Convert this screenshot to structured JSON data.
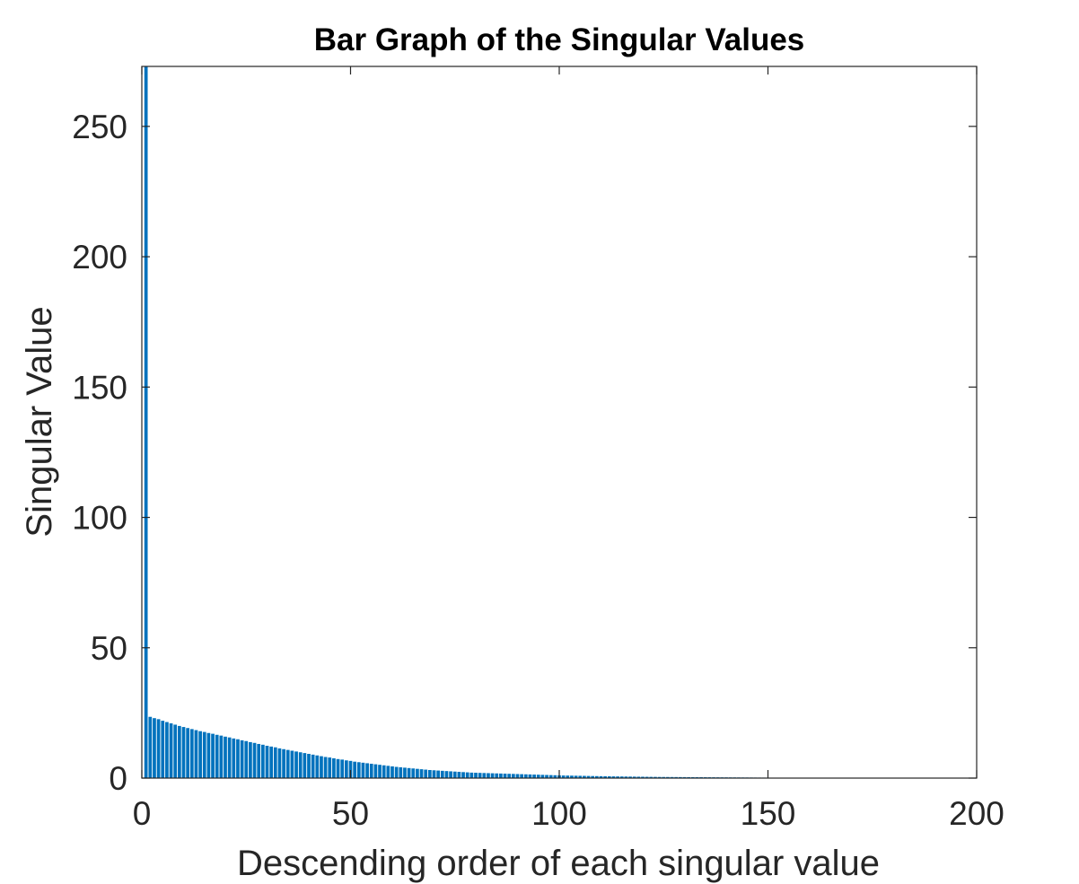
{
  "chart_data": {
    "type": "bar",
    "title": "Bar Graph of the Singular Values",
    "xlabel": "Descending order of each singular value",
    "ylabel": "Singular Value",
    "xlim": [
      0,
      200
    ],
    "ylim": [
      0,
      273
    ],
    "xticks": [
      0,
      50,
      100,
      150,
      200
    ],
    "yticks": [
      0,
      50,
      100,
      150,
      200,
      250
    ],
    "xtick_labels": [
      "0",
      "50",
      "100",
      "150",
      "200"
    ],
    "ytick_labels": [
      "0",
      "50",
      "100",
      "150",
      "200",
      "250"
    ],
    "grid": false,
    "box": true,
    "bar_color": "#0072BD",
    "x": [
      1,
      2,
      3,
      4,
      5,
      6,
      7,
      8,
      9,
      10,
      11,
      12,
      13,
      14,
      15,
      16,
      17,
      18,
      19,
      20,
      21,
      22,
      23,
      24,
      25,
      26,
      27,
      28,
      29,
      30,
      31,
      32,
      33,
      34,
      35,
      36,
      37,
      38,
      39,
      40,
      41,
      42,
      43,
      44,
      45,
      46,
      47,
      48,
      49,
      50,
      51,
      52,
      53,
      54,
      55,
      56,
      57,
      58,
      59,
      60,
      61,
      62,
      63,
      64,
      65,
      66,
      67,
      68,
      69,
      70,
      71,
      72,
      73,
      74,
      75,
      76,
      77,
      78,
      79,
      80,
      81,
      82,
      83,
      84,
      85,
      86,
      87,
      88,
      89,
      90,
      91,
      92,
      93,
      94,
      95,
      96,
      97,
      98,
      99,
      100,
      101,
      102,
      103,
      104,
      105,
      106,
      107,
      108,
      109,
      110,
      111,
      112,
      113,
      114,
      115,
      116,
      117,
      118,
      119,
      120,
      121,
      122,
      123,
      124,
      125,
      126,
      127,
      128,
      129,
      130,
      131,
      132,
      133,
      134,
      135,
      136,
      137,
      138,
      139,
      140,
      141,
      142,
      143,
      144,
      145,
      146,
      147,
      148,
      149,
      150,
      151,
      152,
      153,
      154,
      155,
      156,
      157,
      158,
      159,
      160,
      161,
      162,
      163,
      164,
      165,
      166,
      167,
      168,
      169,
      170,
      171,
      172,
      173,
      174,
      175,
      176,
      177,
      178,
      179,
      180,
      181,
      182,
      183,
      184,
      185,
      186,
      187,
      188,
      189,
      190,
      191,
      192,
      193,
      194,
      195,
      196,
      197,
      198,
      199
    ],
    "values": [
      273,
      23.5,
      23,
      22.6,
      22,
      21.5,
      21,
      20.5,
      20,
      19.6,
      19.2,
      18.8,
      18.4,
      18,
      17.7,
      17.3,
      17,
      16.6,
      16.3,
      15.9,
      15.6,
      15.2,
      14.9,
      14.5,
      14.2,
      13.8,
      13.5,
      13.1,
      12.8,
      12.4,
      12.1,
      11.8,
      11.4,
      11.1,
      10.8,
      10.5,
      10.2,
      9.9,
      9.6,
      9.3,
      9,
      8.7,
      8.4,
      8.1,
      7.9,
      7.6,
      7.3,
      7.1,
      6.8,
      6.6,
      6.3,
      6.1,
      5.9,
      5.7,
      5.5,
      5.3,
      5.1,
      4.9,
      4.7,
      4.5,
      4.3,
      4.15,
      4,
      3.85,
      3.7,
      3.55,
      3.4,
      3.25,
      3.1,
      3,
      2.9,
      2.8,
      2.7,
      2.6,
      2.5,
      2.4,
      2.3,
      2.2,
      2.1,
      2.05,
      2,
      1.95,
      1.9,
      1.85,
      1.8,
      1.75,
      1.7,
      1.65,
      1.6,
      1.55,
      1.5,
      1.45,
      1.4,
      1.35,
      1.3,
      1.25,
      1.2,
      1.15,
      1.1,
      1.05,
      1,
      0.97,
      0.94,
      0.91,
      0.88,
      0.85,
      0.82,
      0.79,
      0.76,
      0.73,
      0.7,
      0.68,
      0.66,
      0.64,
      0.62,
      0.6,
      0.58,
      0.56,
      0.54,
      0.52,
      0.5,
      0.48,
      0.46,
      0.44,
      0.43,
      0.42,
      0.41,
      0.4,
      0.39,
      0.38,
      0.37,
      0.36,
      0.35,
      0.34,
      0.33,
      0.32,
      0.31,
      0.3,
      0.29,
      0.28,
      0.27,
      0.26,
      0.25,
      0.24,
      0.23,
      0.22,
      0.21,
      0.2,
      0.19,
      0.18,
      0.17,
      0.16,
      0.16,
      0.15,
      0.15,
      0.14,
      0.14,
      0.13,
      0.13,
      0.12,
      0.12,
      0.11,
      0.11,
      0.1,
      0.1,
      0.09,
      0.09,
      0.09,
      0.08,
      0.08,
      0.08,
      0.07,
      0.07,
      0.07,
      0.06,
      0.06,
      0.06,
      0.05,
      0.05,
      0.05,
      0.05,
      0.04,
      0.04,
      0.04,
      0.04,
      0.03,
      0.03,
      0.03,
      0.03,
      0.03,
      0.02,
      0.02,
      0.02,
      0.02,
      0.02,
      0.02,
      0.01,
      0.01,
      0.01
    ]
  }
}
